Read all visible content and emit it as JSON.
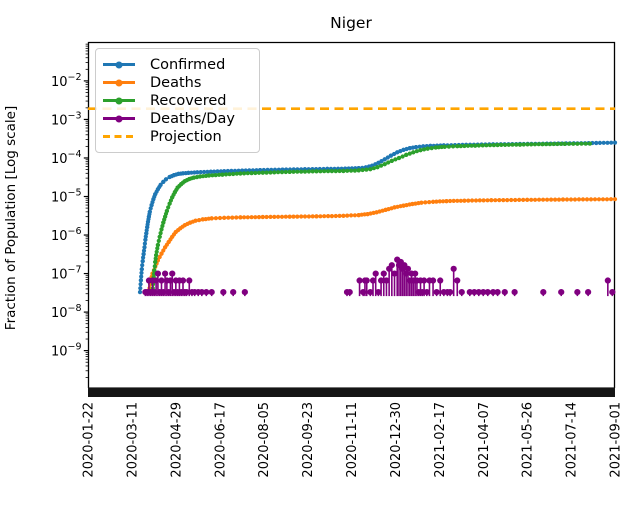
{
  "chart_data": {
    "type": "line",
    "title": "Niger",
    "ylabel": "Fraction of Population [Log scale]",
    "yscale": "log",
    "ylim": [
      1e-10,
      0.1
    ],
    "ytick_exponents": [
      -2,
      -3,
      -4,
      -5,
      -6,
      -7,
      -8,
      -9
    ],
    "x_unit": "days since 2020-01-22",
    "x_range_days": [
      0,
      588
    ],
    "xtick_days": [
      0,
      49,
      98,
      147,
      196,
      245,
      294,
      343,
      392,
      441,
      490,
      539,
      588
    ],
    "xtick_labels": [
      "2020-01-22",
      "2020-03-11",
      "2020-04-29",
      "2020-06-17",
      "2020-08-05",
      "2020-09-23",
      "2020-11-11",
      "2020-12-30",
      "2021-02-17",
      "2021-04-07",
      "2021-05-26",
      "2021-07-14",
      "2021-09-01"
    ],
    "legend_position": "upper-left",
    "series": [
      {
        "name": "Confirmed",
        "color": "#1f77b4",
        "style": "line",
        "points_day_value": [
          [
            58,
            3.3e-08
          ],
          [
            59,
            6.7e-08
          ],
          [
            60,
            1.3e-07
          ],
          [
            61,
            2.1e-07
          ],
          [
            62,
            3.2e-07
          ],
          [
            63,
            4.8e-07
          ],
          [
            64,
            7.5e-07
          ],
          [
            65,
            1.1e-06
          ],
          [
            66,
            1.6e-06
          ],
          [
            67,
            2.2e-06
          ],
          [
            68,
            3e-06
          ],
          [
            69,
            4e-06
          ],
          [
            71,
            6e-06
          ],
          [
            73,
            8.5e-06
          ],
          [
            75,
            1.15e-05
          ],
          [
            78,
            1.55e-05
          ],
          [
            81,
            2e-05
          ],
          [
            84,
            2.4e-05
          ],
          [
            87,
            2.8e-05
          ],
          [
            91,
            3.2e-05
          ],
          [
            96,
            3.6e-05
          ],
          [
            101,
            3.85e-05
          ],
          [
            106,
            4e-05
          ],
          [
            112,
            4.1e-05
          ],
          [
            122,
            4.25e-05
          ],
          [
            137,
            4.4e-05
          ],
          [
            152,
            4.55e-05
          ],
          [
            172,
            4.7e-05
          ],
          [
            192,
            4.85e-05
          ],
          [
            217,
            5e-05
          ],
          [
            242,
            5.1e-05
          ],
          [
            267,
            5.2e-05
          ],
          [
            287,
            5.3e-05
          ],
          [
            302,
            5.45e-05
          ],
          [
            310,
            5.7e-05
          ],
          [
            317,
            6.3e-05
          ],
          [
            324,
            7.5e-05
          ],
          [
            331,
            9.2e-05
          ],
          [
            338,
            0.000115
          ],
          [
            345,
            0.00014
          ],
          [
            352,
            0.000162
          ],
          [
            359,
            0.00018
          ],
          [
            366,
            0.000192
          ],
          [
            374,
            0.0002
          ],
          [
            382,
            0.000206
          ],
          [
            397,
            0.000212
          ],
          [
            422,
            0.00022
          ],
          [
            452,
            0.000226
          ],
          [
            482,
            0.00023
          ],
          [
            512,
            0.000235
          ],
          [
            542,
            0.00024
          ],
          [
            567,
            0.000245
          ],
          [
            588,
            0.00025
          ]
        ]
      },
      {
        "name": "Deaths",
        "color": "#ff7f0e",
        "style": "line",
        "points_day_value": [
          [
            68,
            3.3e-08
          ],
          [
            70,
            6.7e-08
          ],
          [
            72,
            1e-07
          ],
          [
            75,
            1.5e-07
          ],
          [
            78,
            2.2e-07
          ],
          [
            82,
            3.3e-07
          ],
          [
            86,
            4.8e-07
          ],
          [
            90,
            6.6e-07
          ],
          [
            94,
            9e-07
          ],
          [
            98,
            1.2e-06
          ],
          [
            103,
            1.5e-06
          ],
          [
            108,
            1.8e-06
          ],
          [
            114,
            2.1e-06
          ],
          [
            120,
            2.35e-06
          ],
          [
            128,
            2.55e-06
          ],
          [
            138,
            2.7e-06
          ],
          [
            152,
            2.8e-06
          ],
          [
            170,
            2.87e-06
          ],
          [
            195,
            2.93e-06
          ],
          [
            225,
            3e-06
          ],
          [
            255,
            3.05e-06
          ],
          [
            285,
            3.15e-06
          ],
          [
            302,
            3.3e-06
          ],
          [
            312,
            3.5e-06
          ],
          [
            322,
            3.9e-06
          ],
          [
            332,
            4.5e-06
          ],
          [
            342,
            5.2e-06
          ],
          [
            352,
            5.8e-06
          ],
          [
            362,
            6.4e-06
          ],
          [
            372,
            6.9e-06
          ],
          [
            385,
            7.3e-06
          ],
          [
            400,
            7.6e-06
          ],
          [
            420,
            7.8e-06
          ],
          [
            450,
            8e-06
          ],
          [
            490,
            8.2e-06
          ],
          [
            530,
            8.35e-06
          ],
          [
            588,
            8.5e-06
          ]
        ]
      },
      {
        "name": "Recovered",
        "color": "#2ca02c",
        "style": "line",
        "points_day_value": [
          [
            72,
            3.3e-08
          ],
          [
            73,
            6.7e-08
          ],
          [
            74,
            1.2e-07
          ],
          [
            75,
            2e-07
          ],
          [
            76,
            3e-07
          ],
          [
            78,
            5.5e-07
          ],
          [
            80,
            9e-07
          ],
          [
            82,
            1.4e-06
          ],
          [
            84,
            2.1e-06
          ],
          [
            86,
            3e-06
          ],
          [
            88,
            4.2e-06
          ],
          [
            91,
            6.5e-06
          ],
          [
            94,
            9.5e-06
          ],
          [
            97,
            1.3e-05
          ],
          [
            100,
            1.7e-05
          ],
          [
            104,
            2.1e-05
          ],
          [
            108,
            2.5e-05
          ],
          [
            113,
            2.85e-05
          ],
          [
            118,
            3.1e-05
          ],
          [
            125,
            3.3e-05
          ],
          [
            135,
            3.5e-05
          ],
          [
            150,
            3.7e-05
          ],
          [
            170,
            3.95e-05
          ],
          [
            195,
            4.15e-05
          ],
          [
            225,
            4.35e-05
          ],
          [
            255,
            4.5e-05
          ],
          [
            285,
            4.6e-05
          ],
          [
            302,
            4.75e-05
          ],
          [
            315,
            5.1e-05
          ],
          [
            323,
            5.8e-05
          ],
          [
            331,
            6.9e-05
          ],
          [
            339,
            8.4e-05
          ],
          [
            347,
            0.0001
          ],
          [
            355,
            0.00012
          ],
          [
            363,
            0.00014
          ],
          [
            371,
            0.00016
          ],
          [
            379,
            0.000175
          ],
          [
            388,
            0.000187
          ],
          [
            398,
            0.000195
          ],
          [
            412,
            0.000202
          ],
          [
            432,
            0.00021
          ],
          [
            457,
            0.000217
          ],
          [
            482,
            0.000223
          ],
          [
            507,
            0.000228
          ],
          [
            532,
            0.000232
          ],
          [
            560,
            0.000236
          ]
        ]
      },
      {
        "name": "Deaths/Day",
        "color": "#800080",
        "style": "stem",
        "stem_baseline_value": 2.6e-08,
        "points_day_value": [
          [
            64,
            3.3e-08
          ],
          [
            66,
            3.3e-08
          ],
          [
            68,
            6.6e-08
          ],
          [
            70,
            3.3e-08
          ],
          [
            72,
            6.6e-08
          ],
          [
            74,
            3.3e-08
          ],
          [
            76,
            6.6e-08
          ],
          [
            78,
            1e-07
          ],
          [
            80,
            3.3e-08
          ],
          [
            82,
            6.6e-08
          ],
          [
            84,
            3.3e-08
          ],
          [
            86,
            1e-07
          ],
          [
            88,
            6.6e-08
          ],
          [
            90,
            3.3e-08
          ],
          [
            92,
            6.6e-08
          ],
          [
            94,
            1e-07
          ],
          [
            96,
            3.3e-08
          ],
          [
            98,
            6.6e-08
          ],
          [
            100,
            3.3e-08
          ],
          [
            102,
            6.6e-08
          ],
          [
            104,
            3.3e-08
          ],
          [
            106,
            6.6e-08
          ],
          [
            108,
            3.3e-08
          ],
          [
            110,
            3.3e-08
          ],
          [
            113,
            6.6e-08
          ],
          [
            116,
            3.3e-08
          ],
          [
            119,
            3.3e-08
          ],
          [
            123,
            3.3e-08
          ],
          [
            127,
            3.3e-08
          ],
          [
            132,
            3.3e-08
          ],
          [
            138,
            3.3e-08
          ],
          [
            151,
            3.3e-08
          ],
          [
            162,
            3.3e-08
          ],
          [
            175,
            3.3e-08
          ],
          [
            289,
            3.3e-08
          ],
          [
            292,
            3.3e-08
          ],
          [
            303,
            6.6e-08
          ],
          [
            307,
            3.3e-08
          ],
          [
            309,
            6.6e-08
          ],
          [
            311,
            6.6e-08
          ],
          [
            315,
            3.3e-08
          ],
          [
            318,
            6.6e-08
          ],
          [
            321,
            1e-07
          ],
          [
            324,
            3.3e-08
          ],
          [
            327,
            6.6e-08
          ],
          [
            330,
            1e-07
          ],
          [
            333,
            6.6e-08
          ],
          [
            336,
            1.33e-07
          ],
          [
            339,
            1.65e-07
          ],
          [
            342,
            1e-07
          ],
          [
            345,
            2.3e-07
          ],
          [
            347,
            1.65e-07
          ],
          [
            349,
            2e-07
          ],
          [
            351,
            1.33e-07
          ],
          [
            353,
            1.65e-07
          ],
          [
            355,
            1e-07
          ],
          [
            357,
            1.33e-07
          ],
          [
            359,
            6.6e-08
          ],
          [
            361,
            1e-07
          ],
          [
            363,
            6.6e-08
          ],
          [
            365,
            1e-07
          ],
          [
            367,
            6.6e-08
          ],
          [
            369,
            3.3e-08
          ],
          [
            371,
            6.6e-08
          ],
          [
            373,
            3.3e-08
          ],
          [
            375,
            6.6e-08
          ],
          [
            378,
            3.3e-08
          ],
          [
            381,
            6.6e-08
          ],
          [
            385,
            6.6e-08
          ],
          [
            389,
            3.3e-08
          ],
          [
            393,
            6.6e-08
          ],
          [
            397,
            3.3e-08
          ],
          [
            401,
            3.3e-08
          ],
          [
            404,
            3.3e-08
          ],
          [
            408,
            1.33e-07
          ],
          [
            412,
            6.6e-08
          ],
          [
            417,
            3.3e-08
          ],
          [
            426,
            3.3e-08
          ],
          [
            431,
            3.3e-08
          ],
          [
            436,
            3.3e-08
          ],
          [
            441,
            3.3e-08
          ],
          [
            446,
            3.3e-08
          ],
          [
            452,
            3.3e-08
          ],
          [
            457,
            3.3e-08
          ],
          [
            465,
            3.3e-08
          ],
          [
            476,
            3.3e-08
          ],
          [
            508,
            3.3e-08
          ],
          [
            528,
            3.3e-08
          ],
          [
            546,
            3.3e-08
          ],
          [
            558,
            3.3e-08
          ],
          [
            580,
            6.6e-08
          ],
          [
            585,
            3.3e-08
          ]
        ]
      },
      {
        "name": "Projection",
        "color": "#ffa500",
        "style": "dashed-horizontal-line",
        "value": 0.0019
      }
    ]
  }
}
